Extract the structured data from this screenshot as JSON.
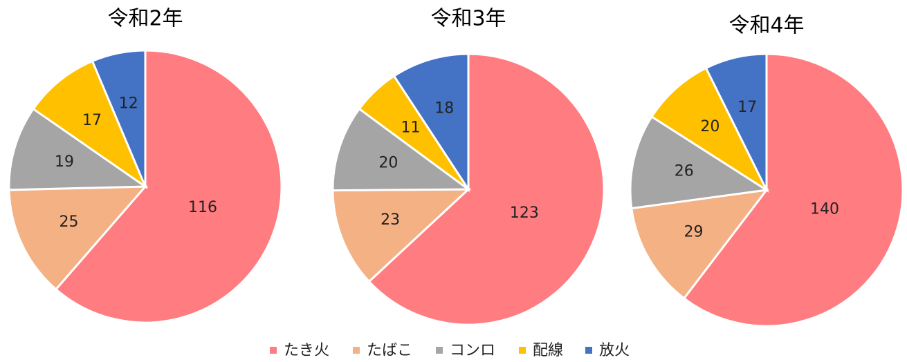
{
  "legend": {
    "labels": [
      "たき火",
      "たばこ",
      "コンロ",
      "配線",
      "放火"
    ],
    "colors": [
      "#ff7c80",
      "#f4b183",
      "#a5a5a5",
      "#ffc000",
      "#4472c4"
    ]
  },
  "chart_data": [
    {
      "type": "pie",
      "title": "令和2年",
      "values": [
        116,
        25,
        19,
        17,
        12
      ]
    },
    {
      "type": "pie",
      "title": "令和3年",
      "values": [
        123,
        23,
        20,
        11,
        18
      ]
    },
    {
      "type": "pie",
      "title": "令和4年",
      "values": [
        140,
        29,
        26,
        20,
        17
      ]
    }
  ]
}
